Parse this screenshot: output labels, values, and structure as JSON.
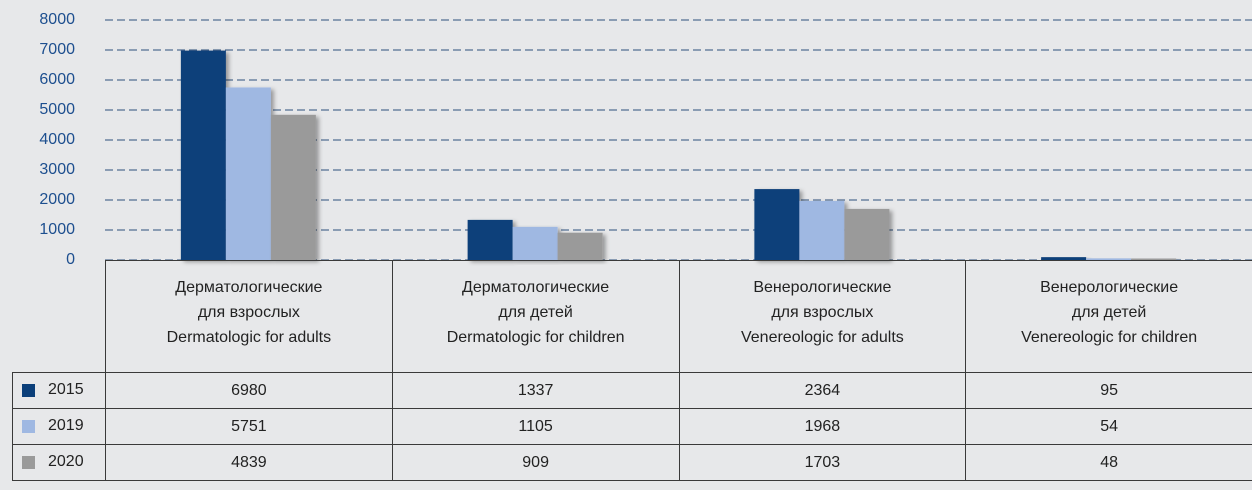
{
  "chart_data": {
    "type": "bar",
    "categories": [
      "Дерматологические\nдля взрослых\nDermatologic for adults",
      "Дерматологические\nдля детей\nDermatologic for children",
      "Венерологические\nдля взрослых\nVenereologic for adults",
      "Венерологические\nдля детей\nVenereologic for children"
    ],
    "series": [
      {
        "name": "2015",
        "color": "#0b3f7a",
        "values": [
          6980,
          1337,
          2364,
          95
        ]
      },
      {
        "name": "2019",
        "color": "#9fb8e2",
        "values": [
          5751,
          1105,
          1968,
          54
        ]
      },
      {
        "name": "2020",
        "color": "#9a9a9a",
        "values": [
          4839,
          909,
          1703,
          48
        ]
      }
    ],
    "ylim": [
      0,
      8000
    ],
    "yticks": [
      0,
      1000,
      2000,
      3000,
      4000,
      5000,
      6000,
      7000,
      8000
    ],
    "grid": true
  }
}
